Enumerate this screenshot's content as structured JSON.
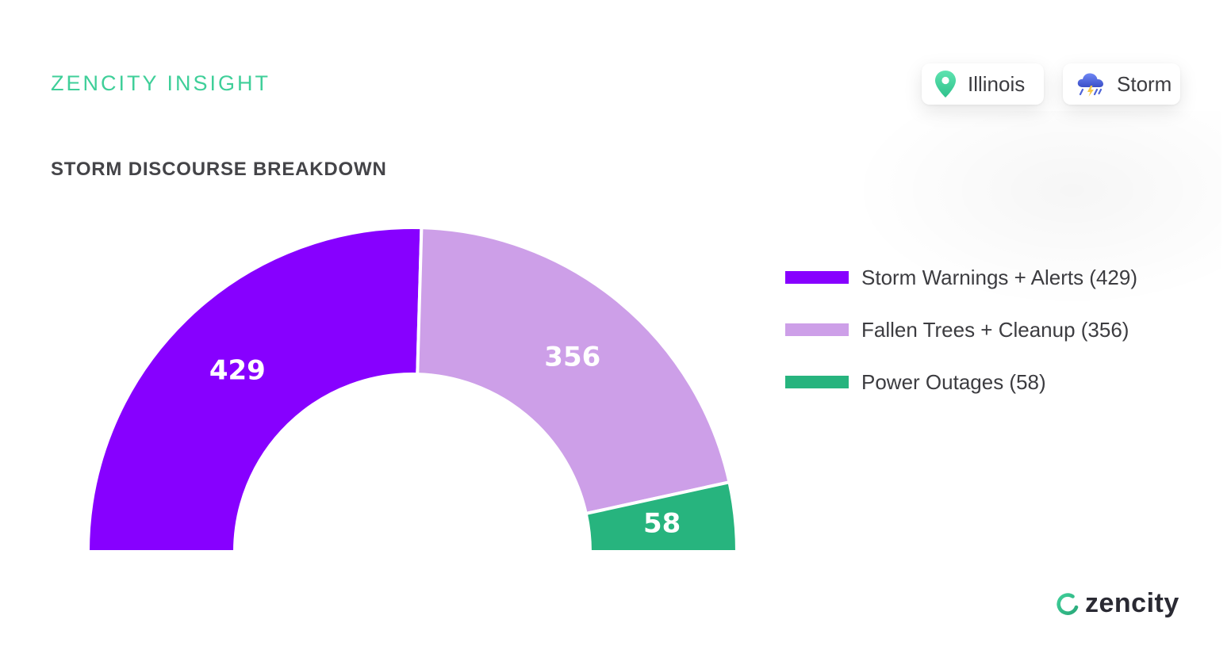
{
  "header": {
    "brand_label": "ZENCITY INSIGHT",
    "chip_location": "Illinois",
    "chip_topic": "Storm"
  },
  "icons": {
    "location": "map-pin-icon",
    "topic": "storm-cloud-icon"
  },
  "colors": {
    "brand_green": "#3fcf99",
    "storm_warnings": "#8700ff",
    "fallen_trees": "#cd9fe8",
    "power_outages": "#27b47e"
  },
  "chart_data": {
    "type": "pie",
    "subtype": "half-donut",
    "title": "STORM DISCOURSE BREAKDOWN",
    "slices": [
      {
        "label": "Storm Warnings + Alerts",
        "value": 429,
        "legend": "Storm Warnings + Alerts (429)",
        "display": "429",
        "color": "#8700ff"
      },
      {
        "label": "Fallen Trees + Cleanup",
        "value": 356,
        "legend": "Fallen Trees + Cleanup (356)",
        "display": "356",
        "color": "#cd9fe8"
      },
      {
        "label": "Power Outages",
        "value": 58,
        "legend": "Power Outages (58)",
        "display": "58",
        "color": "#27b47e"
      }
    ],
    "legend_position": "right"
  },
  "footer": {
    "logo_text": "zencity"
  }
}
